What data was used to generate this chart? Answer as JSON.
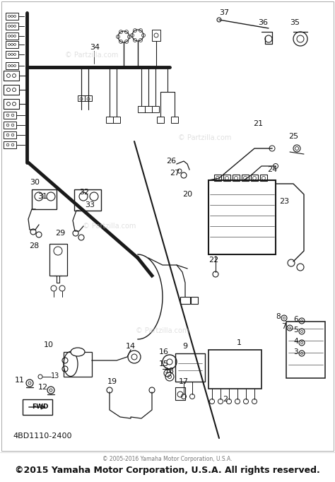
{
  "footer_main": "©2015 Yamaha Motor Corporation, U.S.A. All rights reserved.",
  "footer_sub": "© 2005-2016 Yamaha Motor Corporation, U.S.A.",
  "part_number": "4BD1110-2400",
  "watermark": "© Partzilla.com",
  "bg_color": "#ffffff",
  "line_color": "#1a1a1a",
  "text_color": "#111111",
  "gray_text": "#888888"
}
